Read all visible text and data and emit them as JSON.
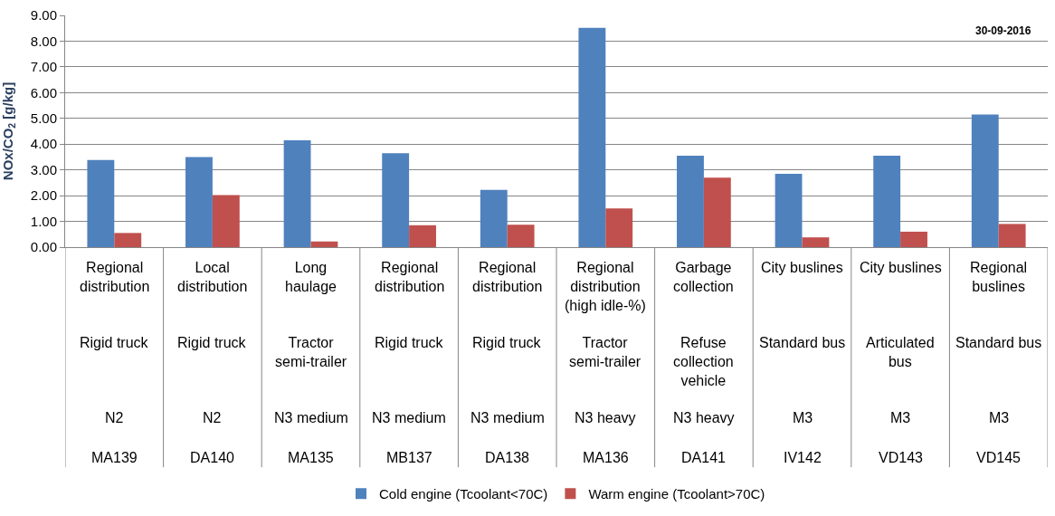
{
  "chart_data": {
    "type": "bar",
    "ylabel": "NOx/CO$_{2}$ [g/kg]",
    "categories": [
      "Regional\ndistribution\n\nRigid truck\n\nN2\n\nMA139",
      "Local\ndistribution\n\nRigid truck\n\nN2\n\nDA140",
      "Long\nhaulage\n\nTractor\nsemi-trailer\n\nN3 medium\n\nMA135",
      "Regional\ndistribution\n\nRigid truck\n\nN3 medium\n\nMB137",
      "Regional\ndistribution\n\nRigid truck\n\nN3 medium\n\nDA138",
      "Regional\ndistribution\n(high idle-%)\n\nTractor\nsemi-trailer\n\nN3 heavy\n\nMA136",
      "Garbage\ncollection\n\nRefuse\ncollection\nvehicle\n\nN3 heavy\n\nDA141",
      "City buslines\n\nStandard bus\n\nM3\n\nIV142",
      "City buslines\n\nArticulated\nbus\n\nM3\n\nVD143",
      "Regional\nbuslines\n\nStandard bus\n\nM3\n\nVD145"
    ],
    "series": [
      {
        "name": "Cold engine (Tcoolant<70C)",
        "color": "#4f81bd",
        "values": [
          3.38,
          3.5,
          4.15,
          3.65,
          2.22,
          8.52,
          3.55,
          2.85,
          3.55,
          5.15
        ]
      },
      {
        "name": "Warm engine (Tcoolant>70C)",
        "color": "#c0504d",
        "values": [
          0.55,
          2.02,
          0.22,
          0.85,
          0.87,
          1.5,
          2.7,
          0.38,
          0.6,
          0.9
        ]
      }
    ],
    "ylim": [
      0,
      9
    ],
    "yticks": [
      {
        "value": 0,
        "label": "0.00"
      },
      {
        "value": 1,
        "label": "1.00"
      },
      {
        "value": 2,
        "label": "2.00"
      },
      {
        "value": 3,
        "label": "3.00"
      },
      {
        "value": 4,
        "label": "4.00"
      },
      {
        "value": 5,
        "label": "5.00"
      },
      {
        "value": 6,
        "label": "6.00"
      },
      {
        "value": 7,
        "label": "7.00"
      },
      {
        "value": 8,
        "label": "8.00"
      },
      {
        "value": 9,
        "label": "9.00"
      }
    ],
    "grid": "y",
    "legend": "bottom",
    "annotations": [
      "30-09-2016"
    ]
  }
}
